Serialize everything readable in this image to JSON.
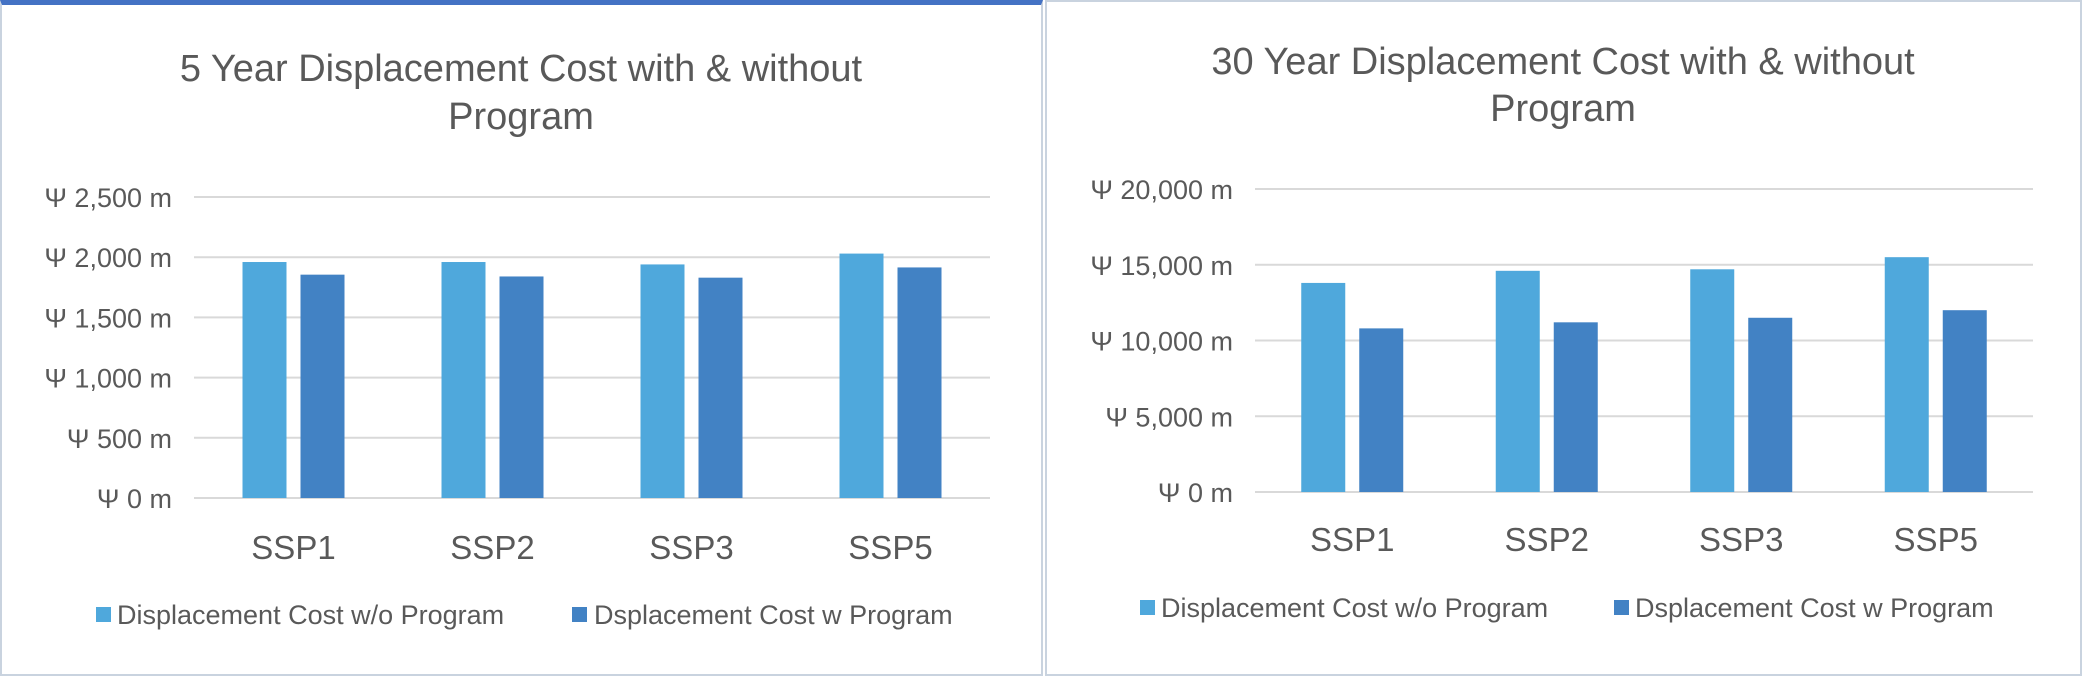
{
  "colors": {
    "series_without": "#4fa8dc",
    "series_with": "#4282c4",
    "gridline": "#d9d9d9",
    "text": "#595959"
  },
  "chart_data": [
    {
      "type": "bar",
      "title_lines": [
        "5 Year Displacement Cost with & without",
        "Program"
      ],
      "categories": [
        "SSP1",
        "SSP2",
        "SSP3",
        "SSP5"
      ],
      "series": [
        {
          "name": "Displacement Cost w/o Program",
          "values": [
            1960,
            1960,
            1940,
            2030
          ]
        },
        {
          "name": "Dsplacement Cost w Program",
          "values": [
            1855,
            1840,
            1830,
            1915
          ]
        }
      ],
      "y_ticks": [
        0,
        500,
        1000,
        1500,
        2000,
        2500
      ],
      "y_tick_labels": [
        "Ψ 0 m",
        "Ψ 500 m",
        "Ψ 1,000 m",
        "Ψ 1,500 m",
        "Ψ 2,000 m",
        "Ψ 2,500 m"
      ],
      "ylim": [
        0,
        2500
      ],
      "grid": true,
      "legend": "bottom"
    },
    {
      "type": "bar",
      "title_lines": [
        "30 Year Displacement Cost with & without",
        "Program"
      ],
      "categories": [
        "SSP1",
        "SSP2",
        "SSP3",
        "SSP5"
      ],
      "series": [
        {
          "name": "Displacement Cost w/o Program",
          "values": [
            13800,
            14600,
            14700,
            15500
          ]
        },
        {
          "name": "Dsplacement Cost w Program",
          "values": [
            10800,
            11200,
            11500,
            12000
          ]
        }
      ],
      "y_ticks": [
        0,
        5000,
        10000,
        15000,
        20000
      ],
      "y_tick_labels": [
        "Ψ 0 m",
        "Ψ 5,000 m",
        "Ψ 10,000 m",
        "Ψ 15,000 m",
        "Ψ 20,000 m"
      ],
      "ylim": [
        0,
        20000
      ],
      "grid": true,
      "legend": "bottom"
    }
  ]
}
